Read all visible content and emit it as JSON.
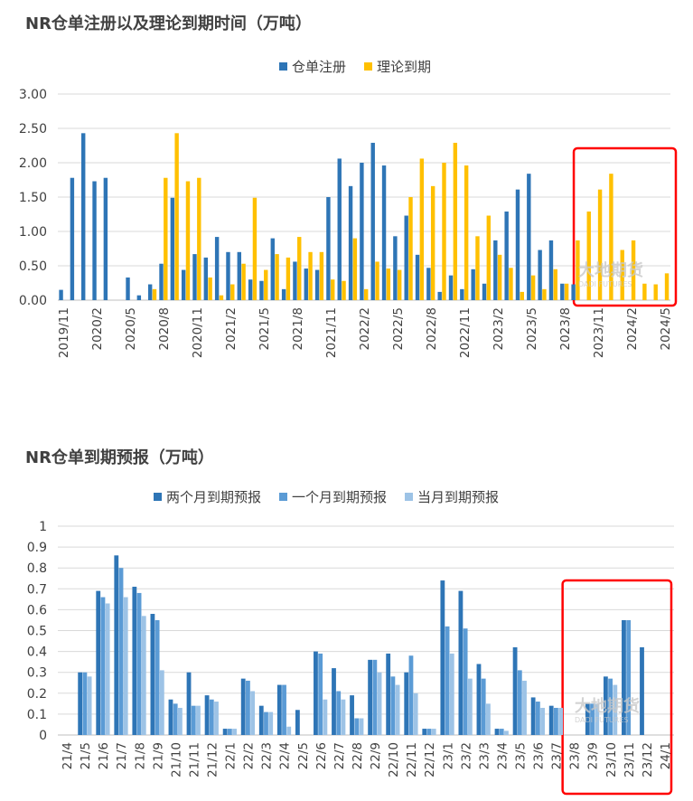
{
  "chart_data": [
    {
      "type": "bar",
      "title": "NR仓单注册以及理论到期时间（万吨）",
      "legend_position": "top",
      "grid": true,
      "ylim": [
        0,
        3
      ],
      "yticks": [
        "0.00",
        "0.50",
        "1.00",
        "1.50",
        "2.00",
        "2.50",
        "3.00"
      ],
      "x_tick_labels": [
        "2019/11",
        "2020/2",
        "2020/5",
        "2020/8",
        "2020/11",
        "2021/2",
        "2021/5",
        "2021/8",
        "2021/11",
        "2022/2",
        "2022/5",
        "2022/8",
        "2022/11",
        "2023/2",
        "2023/5",
        "2023/8",
        "2023/11",
        "2024/2",
        "2024/5"
      ],
      "categories": [
        "2019/11",
        "2019/12",
        "2020/1",
        "2020/2",
        "2020/3",
        "2020/4",
        "2020/5",
        "2020/6",
        "2020/7",
        "2020/8",
        "2020/9",
        "2020/10",
        "2020/11",
        "2020/12",
        "2021/1",
        "2021/2",
        "2021/3",
        "2021/4",
        "2021/5",
        "2021/6",
        "2021/7",
        "2021/8",
        "2021/9",
        "2021/10",
        "2021/11",
        "2021/12",
        "2022/1",
        "2022/2",
        "2022/3",
        "2022/4",
        "2022/5",
        "2022/6",
        "2022/7",
        "2022/8",
        "2022/9",
        "2022/10",
        "2022/11",
        "2022/12",
        "2023/1",
        "2023/2",
        "2023/3",
        "2023/4",
        "2023/5",
        "2023/6",
        "2023/7",
        "2023/8",
        "2023/9",
        "2023/10",
        "2023/11",
        "2023/12",
        "2024/1",
        "2024/2",
        "2024/3",
        "2024/4",
        "2024/5"
      ],
      "series": [
        {
          "name": "仓单注册",
          "color": "#2e75b6",
          "values": [
            0.15,
            1.78,
            2.43,
            1.73,
            1.78,
            0,
            0.33,
            0.07,
            0.23,
            0.53,
            1.49,
            0.44,
            0.67,
            0.62,
            0.92,
            0.7,
            0.7,
            0.3,
            0.28,
            0.9,
            0.16,
            0.56,
            0.46,
            0.44,
            1.5,
            2.06,
            1.66,
            2.0,
            2.29,
            1.96,
            0.93,
            1.23,
            0.66,
            0.47,
            0.12,
            0.36,
            0.16,
            0.45,
            0.24,
            0.87,
            1.29,
            1.61,
            1.84,
            0.73,
            0.87,
            0.24,
            0.23,
            0,
            0,
            0,
            0,
            0,
            0,
            0,
            0
          ]
        },
        {
          "name": "理论到期",
          "color": "#ffc000",
          "values": [
            0,
            0,
            0,
            0,
            0,
            0,
            0,
            0,
            0.16,
            1.78,
            2.43,
            1.73,
            1.78,
            0.33,
            0.07,
            0.23,
            0.53,
            1.49,
            0.44,
            0.67,
            0.62,
            0.92,
            0.7,
            0.7,
            0.3,
            0.28,
            0.9,
            0.16,
            0.56,
            0.46,
            0.44,
            1.5,
            2.06,
            1.66,
            2.0,
            2.29,
            1.96,
            0.93,
            1.23,
            0.66,
            0.47,
            0.12,
            0.36,
            0.16,
            0.45,
            0.24,
            0.87,
            1.29,
            1.61,
            1.84,
            0.73,
            0.87,
            0.24,
            0.23,
            0.39
          ]
        }
      ],
      "highlight_box": {
        "from_category": "2023/9",
        "to_category": "2024/5",
        "color": "#ff0000"
      },
      "watermark": "大地期货 DADI FUTURES"
    },
    {
      "type": "bar",
      "title": "NR仓单到期预报（万吨）",
      "legend_position": "top",
      "grid": true,
      "ylim": [
        0,
        1
      ],
      "yticks": [
        "0",
        "0.1",
        "0.2",
        "0.3",
        "0.4",
        "0.5",
        "0.6",
        "0.7",
        "0.8",
        "0.9",
        "1"
      ],
      "categories": [
        "21/4",
        "21/5",
        "21/6",
        "21/7",
        "21/8",
        "21/9",
        "21/10",
        "21/11",
        "21/12",
        "22/1",
        "22/2",
        "22/3",
        "22/4",
        "22/5",
        "22/6",
        "22/7",
        "22/8",
        "22/9",
        "22/10",
        "22/11",
        "22/12",
        "23/1",
        "23/2",
        "23/3",
        "23/4",
        "23/5",
        "23/6",
        "23/7",
        "23/8",
        "23/9",
        "23/10",
        "23/11",
        "23/12",
        "24/1"
      ],
      "series": [
        {
          "name": "两个月到期预报",
          "color": "#2e75b6",
          "values": [
            0,
            0.3,
            0.69,
            0.86,
            0.71,
            0.58,
            0.17,
            0.3,
            0.19,
            0.03,
            0.27,
            0.14,
            0.24,
            0.12,
            0.4,
            0.32,
            0.19,
            0.36,
            0.39,
            0.3,
            0.03,
            0.74,
            0.69,
            0.34,
            0.03,
            0.42,
            0.18,
            0.14,
            0,
            0.15,
            0.28,
            0.55,
            0.42,
            0
          ]
        },
        {
          "name": "一个月到期预报",
          "color": "#5b9bd5",
          "values": [
            0,
            0.3,
            0.66,
            0.8,
            0.68,
            0.55,
            0.15,
            0.14,
            0.17,
            0.03,
            0.26,
            0.11,
            0.24,
            0,
            0.39,
            0.21,
            0.08,
            0.36,
            0.28,
            0.38,
            0.03,
            0.52,
            0.51,
            0.27,
            0.03,
            0.31,
            0.16,
            0.13,
            0,
            0.15,
            0.27,
            0.55,
            0,
            0
          ]
        },
        {
          "name": "当月到期预报",
          "color": "#9dc3e6",
          "values": [
            0,
            0.28,
            0.63,
            0.66,
            0.57,
            0.31,
            0.13,
            0.14,
            0.16,
            0.03,
            0.21,
            0.11,
            0.04,
            0,
            0.17,
            0.17,
            0.08,
            0.3,
            0.24,
            0.2,
            0.03,
            0.39,
            0.27,
            0.15,
            0.02,
            0.26,
            0.13,
            0.13,
            0,
            0.15,
            0.24,
            0,
            0,
            0
          ]
        }
      ],
      "highlight_box": {
        "from_category": "23/8",
        "to_category": "24/1",
        "color": "#ff0000"
      },
      "watermark": "大地期货 DADI FUTURES"
    }
  ]
}
